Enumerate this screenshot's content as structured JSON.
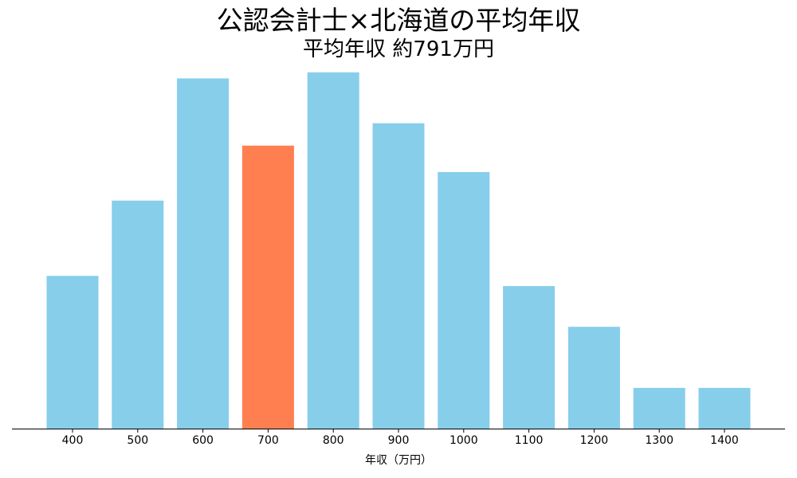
{
  "chart": {
    "title": "公認会計士×北海道の平均年収",
    "subtitle": "平均年収 約791万円"
  },
  "chart_data": {
    "type": "bar",
    "title": "公認会計士×北海道の平均年収",
    "subtitle": "平均年収 約791万円",
    "xlabel": "年収（万円）",
    "ylabel": "",
    "categories": [
      "400",
      "500",
      "600",
      "700",
      "800",
      "900",
      "1000",
      "1100",
      "1200",
      "1300",
      "1400"
    ],
    "values": [
      7.5,
      11.2,
      17.2,
      13.9,
      17.5,
      15.0,
      12.6,
      7.0,
      5.0,
      2.0,
      2.0
    ],
    "ylim": [
      0,
      18
    ],
    "highlight_category": "700",
    "colors": {
      "bar": "#87CEEB",
      "highlight": "#FF7F50",
      "axis": "#000000"
    },
    "grid": false,
    "y_axis_visible": false,
    "legend": "none"
  }
}
